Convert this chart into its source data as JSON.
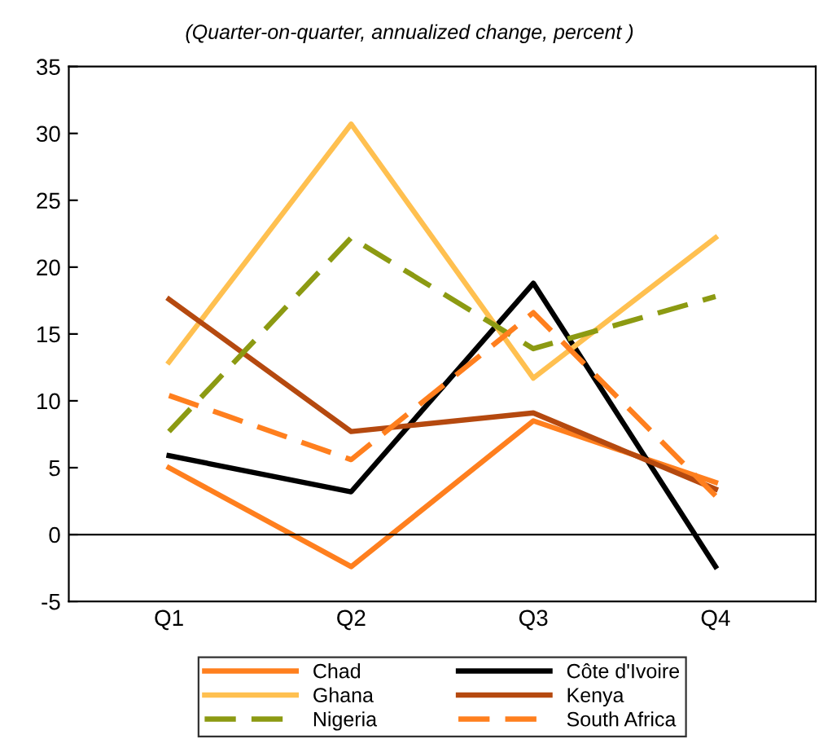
{
  "chart_data": {
    "type": "line",
    "subtitle": "(Quarter-on-quarter, annualized change, percent )",
    "categories": [
      "Q1",
      "Q2",
      "Q3",
      "Q4"
    ],
    "series": [
      {
        "name": "Chad",
        "color": "#ff7f1e",
        "values": [
          5.0,
          -2.4,
          8.5,
          3.9
        ]
      },
      {
        "name": "Côte d'Ivoire",
        "color": "#000000",
        "values": [
          5.9,
          3.2,
          18.8,
          -2.4
        ]
      },
      {
        "name": "Ghana",
        "color": "#ffc050",
        "values": [
          12.9,
          30.7,
          11.7,
          22.2
        ]
      },
      {
        "name": "Kenya",
        "color": "#b5490f",
        "values": [
          17.6,
          7.7,
          9.1,
          3.4
        ]
      },
      {
        "name": "Nigeria",
        "color": "#8c9a12",
        "values": [
          7.7,
          22.2,
          13.9,
          17.8
        ],
        "line_style": "dashed"
      },
      {
        "name": "South Africa",
        "color": "#ff7f1e",
        "values": [
          10.4,
          5.6,
          16.6,
          2.9
        ],
        "line_style": "dashed"
      }
    ],
    "ylim": [
      -5,
      35
    ],
    "yticks": [
      -5,
      0,
      5,
      10,
      15,
      20,
      25,
      30,
      35
    ],
    "ref_lines": [
      {
        "axis": "y",
        "value": 0,
        "color": "#000000"
      }
    ],
    "grid": false,
    "legend": "bottom",
    "marker": "none"
  }
}
